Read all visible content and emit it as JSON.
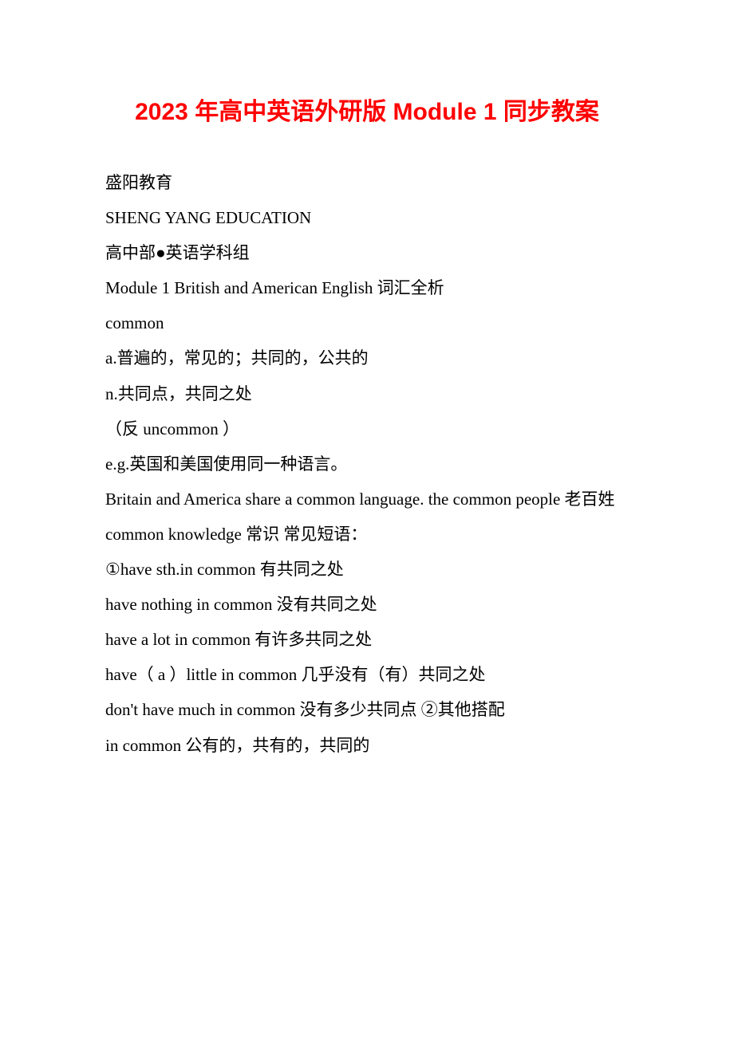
{
  "title": "2023 年高中英语外研版 Module 1 同步教案",
  "lines": [
    "盛阳教育",
    "SHENG YANG EDUCATION",
    "高中部●英语学科组",
    "Module 1 British and American English 词汇全析",
    "common",
    "a.普遍的，常见的；共同的，公共的",
    "n.共同点，共同之处",
    "（反 uncommon ）",
    "e.g.英国和美国使用同一种语言。",
    "Britain and America share a common language. the common people 老百姓",
    "common knowledge 常识 常见短语：",
    "①have sth.in common 有共同之处",
    "have nothing in common 没有共同之处",
    "have a lot in common 有许多共同之处",
    "have（ a ）little in common 几乎没有（有）共同之处",
    "don't have much in common 没有多少共同点 ②其他搭配",
    "in common 公有的，共有的，共同的"
  ],
  "colors": {
    "title": "#ff0000",
    "text": "#000000",
    "background": "#ffffff"
  },
  "typography": {
    "title_fontsize": 30,
    "body_fontsize": 21,
    "line_height": 2.1
  }
}
